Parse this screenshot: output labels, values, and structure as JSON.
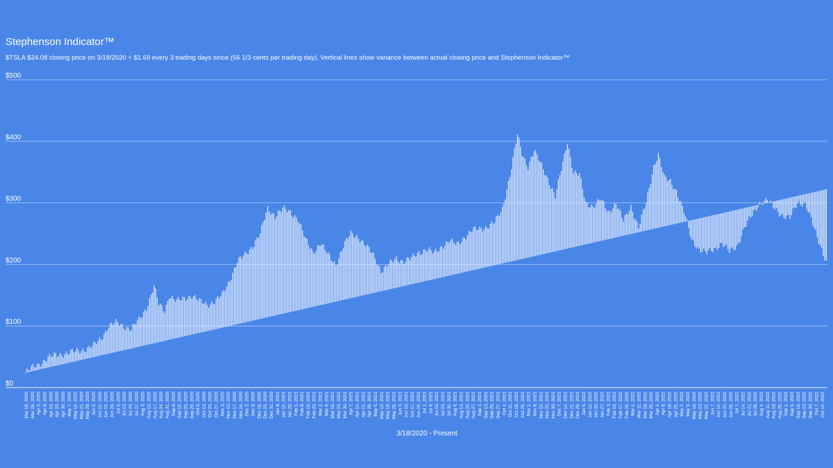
{
  "chart_data": {
    "type": "bar",
    "title": "Stephenson Indicator™",
    "subtitle": "$TSLA $24.08 closing price on 3/18/2020 + $1.69 every 3 trading days since (56 1/3 cents per trading day). Vertical lines show variance between actual closing price and Stephenson Indicator™",
    "xlabel": "3/18/2020 - Present",
    "ylabel": "",
    "ylim": [
      0,
      500
    ],
    "yticks": [
      0,
      100,
      200,
      300,
      400,
      500
    ],
    "ytick_labels": [
      "$0",
      "$100",
      "$200",
      "$300",
      "$400",
      "$500"
    ],
    "grid": true,
    "legend": "none",
    "colors": {
      "background": "#4a86e8",
      "bars": "#ffffff",
      "grid": "#ffffff"
    },
    "indicator": {
      "start_date": "3/18/2020",
      "start_price": 24.08,
      "increment_per_trading_day": 0.5633
    },
    "tick_labels": [
      "Mar 18, 2020",
      "Mar 26, 2020",
      "Apr 3, 2020",
      "Apr 8, 2020",
      "Apr 16, 2020",
      "Apr 23, 2020",
      "Apr 30, 2020",
      "May 7, 2020",
      "May 14, 2020",
      "May 21, 2020",
      "May 29, 2020",
      "Jun 5, 2020",
      "Jun 12, 2020",
      "Jun 19, 2020",
      "Jun 26, 2020",
      "Jul 6, 2020",
      "Jul 13, 2020",
      "Jul 20, 2020",
      "Jul 27, 2020",
      "Aug 3, 2020",
      "Aug 10, 2020",
      "Aug 17, 2020",
      "Aug 24, 2020",
      "Aug 31, 2020",
      "Sep 8, 2020",
      "Sep 15, 2020",
      "Sep 22, 2020",
      "Sep 29, 2020",
      "Oct 6, 2020",
      "Oct 13, 2020",
      "Oct 20, 2020",
      "Oct 27, 2020",
      "Nov 3, 2020",
      "Nov 10, 2020",
      "Nov 17, 2020",
      "Nov 24, 2020",
      "Dec 2, 2020",
      "Dec 9, 2020",
      "Dec 16, 2020",
      "Dec 23, 2020",
      "Dec 31, 2020",
      "Jan 8, 2021",
      "Jan 15, 2021",
      "Jan 25, 2021",
      "Feb 1, 2021",
      "Feb 8, 2021",
      "Feb 16, 2021",
      "Feb 23, 2021",
      "Mar 2, 2021",
      "Mar 9, 2021",
      "Mar 16, 2021",
      "Mar 23, 2021",
      "Mar 30, 2021",
      "Apr 7, 2021",
      "Apr 14, 2021",
      "Apr 21, 2021",
      "Apr 28, 2021",
      "May 5, 2021",
      "May 12, 2021",
      "May 19, 2021",
      "May 26, 2021",
      "Jun 3, 2021",
      "Jun 10, 2021",
      "Jun 17, 2021",
      "Jun 24, 2021",
      "Jul 1, 2021",
      "Jul 9, 2021",
      "Jul 16, 2021",
      "Jul 23, 2021",
      "Jul 30, 2021",
      "Aug 6, 2021",
      "Aug 13, 2021",
      "Aug 20, 2021",
      "Aug 27, 2021",
      "Sep 3, 2021",
      "Sep 13, 2021",
      "Sep 20, 2021",
      "Sep 27, 2021",
      "Oct 4, 2021",
      "Oct 11, 2021",
      "Oct 18, 2021",
      "Oct 25, 2021",
      "Nov 1, 2021",
      "Nov 8, 2021",
      "Nov 15, 2021",
      "Nov 22, 2021",
      "Nov 30, 2021",
      "Dec 7, 2021",
      "Dec 14, 2021",
      "Dec 21, 2021",
      "Dec 29, 2021",
      "Jan 5, 2022",
      "Jan 12, 2022",
      "Jan 20, 2022",
      "Jan 27, 2022",
      "Feb 3, 2022",
      "Feb 10, 2022",
      "Feb 17, 2022",
      "Feb 25, 2022",
      "Mar 4, 2022",
      "Mar 11, 2022",
      "Mar 18, 2022",
      "Mar 25, 2022",
      "Apr 1, 2022",
      "Apr 8, 2022",
      "Apr 18, 2022",
      "Apr 25, 2022",
      "May 2, 2022",
      "May 9, 2022",
      "May 16, 2022",
      "May 23, 2022",
      "May 31, 2022",
      "Jun 7, 2022",
      "Jun 14, 2022",
      "Jun 22, 2022",
      "Jun 29, 2022",
      "Jul 7, 2022",
      "Jul 14, 2022",
      "Jul 21, 2022",
      "Jul 28, 2022",
      "Aug 4, 2022",
      "Aug 11, 2022",
      "Aug 18, 2022",
      "Aug 25, 2022",
      "Sep 1, 2022",
      "Sep 9, 2022",
      "Sep 16, 2022",
      "Sep 23, 2022",
      "Sep 30, 2022",
      "Oct 7, 2022",
      "Oct 14, 2022"
    ],
    "price_keypoints": [
      [
        0,
        24
      ],
      [
        5,
        33
      ],
      [
        10,
        40
      ],
      [
        15,
        48
      ],
      [
        20,
        53
      ],
      [
        25,
        55
      ],
      [
        30,
        57
      ],
      [
        35,
        60
      ],
      [
        40,
        63
      ],
      [
        45,
        68
      ],
      [
        50,
        80
      ],
      [
        55,
        100
      ],
      [
        60,
        105
      ],
      [
        65,
        100
      ],
      [
        70,
        95
      ],
      [
        75,
        110
      ],
      [
        80,
        130
      ],
      [
        85,
        165
      ],
      [
        88,
        135
      ],
      [
        92,
        125
      ],
      [
        95,
        150
      ],
      [
        100,
        140
      ],
      [
        105,
        145
      ],
      [
        110,
        150
      ],
      [
        115,
        140
      ],
      [
        120,
        135
      ],
      [
        125,
        140
      ],
      [
        130,
        150
      ],
      [
        135,
        175
      ],
      [
        140,
        205
      ],
      [
        145,
        215
      ],
      [
        150,
        230
      ],
      [
        155,
        250
      ],
      [
        160,
        290
      ],
      [
        165,
        280
      ],
      [
        170,
        290
      ],
      [
        175,
        285
      ],
      [
        180,
        275
      ],
      [
        185,
        240
      ],
      [
        190,
        220
      ],
      [
        195,
        235
      ],
      [
        200,
        215
      ],
      [
        205,
        200
      ],
      [
        210,
        230
      ],
      [
        215,
        250
      ],
      [
        220,
        245
      ],
      [
        225,
        230
      ],
      [
        230,
        215
      ],
      [
        235,
        190
      ],
      [
        240,
        200
      ],
      [
        245,
        210
      ],
      [
        250,
        205
      ],
      [
        255,
        210
      ],
      [
        260,
        220
      ],
      [
        265,
        225
      ],
      [
        270,
        218
      ],
      [
        275,
        230
      ],
      [
        280,
        238
      ],
      [
        285,
        232
      ],
      [
        290,
        245
      ],
      [
        295,
        255
      ],
      [
        300,
        258
      ],
      [
        305,
        262
      ],
      [
        310,
        268
      ],
      [
        315,
        290
      ],
      [
        320,
        345
      ],
      [
        325,
        410
      ],
      [
        328,
        380
      ],
      [
        332,
        360
      ],
      [
        336,
        385
      ],
      [
        340,
        365
      ],
      [
        345,
        340
      ],
      [
        350,
        310
      ],
      [
        355,
        365
      ],
      [
        358,
        400
      ],
      [
        362,
        350
      ],
      [
        366,
        345
      ],
      [
        370,
        300
      ],
      [
        375,
        295
      ],
      [
        380,
        305
      ],
      [
        385,
        285
      ],
      [
        390,
        300
      ],
      [
        395,
        270
      ],
      [
        400,
        295
      ],
      [
        405,
        260
      ],
      [
        410,
        300
      ],
      [
        415,
        360
      ],
      [
        418,
        380
      ],
      [
        422,
        340
      ],
      [
        426,
        335
      ],
      [
        430,
        320
      ],
      [
        435,
        285
      ],
      [
        440,
        240
      ],
      [
        445,
        225
      ],
      [
        450,
        218
      ],
      [
        455,
        225
      ],
      [
        460,
        235
      ],
      [
        465,
        220
      ],
      [
        470,
        230
      ],
      [
        475,
        260
      ],
      [
        480,
        280
      ],
      [
        485,
        300
      ],
      [
        490,
        305
      ],
      [
        495,
        290
      ],
      [
        500,
        280
      ],
      [
        505,
        275
      ],
      [
        510,
        300
      ],
      [
        515,
        300
      ],
      [
        518,
        280
      ],
      [
        522,
        250
      ],
      [
        526,
        225
      ],
      [
        529,
        205
      ]
    ]
  }
}
